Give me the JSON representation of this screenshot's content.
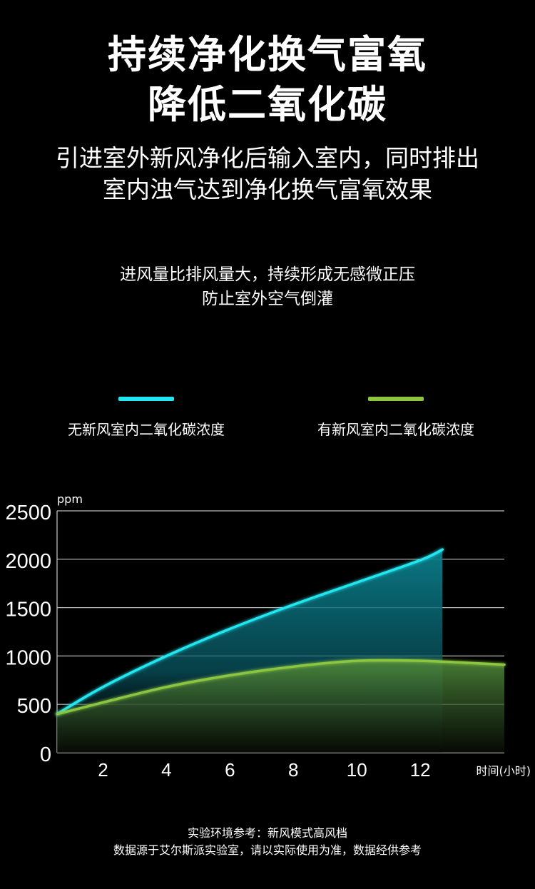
{
  "header": {
    "title_lines": [
      "持续净化换气富氧",
      "降低二氧化碳"
    ],
    "subtitle_lines": [
      "引进室外新风净化后输入室内，同时排出",
      "室内浊气达到净化换气富氧效果"
    ],
    "note_lines": [
      "进风量比排风量大，持续形成无感微正压",
      "防止室外空气倒灌"
    ]
  },
  "legend": [
    {
      "label": "无新风室内二氧化碳浓度",
      "color": "#22e6f0"
    },
    {
      "label": "有新风室内二氧化碳浓度",
      "color": "#8cc63f"
    }
  ],
  "chart_data": {
    "type": "area",
    "ylabel": "ppm",
    "xlabel": "时间(小时)",
    "ylim": [
      0,
      2500
    ],
    "xlim": [
      0.55,
      14.65
    ],
    "yticks": [
      "0",
      "500",
      "1000",
      "1500",
      "2000",
      "2500"
    ],
    "xticks": [
      "2",
      "4",
      "6",
      "8",
      "10",
      "12"
    ],
    "grid": true,
    "legend_position": "top",
    "series": [
      {
        "name": "无新风室内二氧化碳浓度",
        "color": "#22e6f0",
        "x": [
          0.55,
          2,
          4,
          6,
          8,
          10,
          12,
          12.7
        ],
        "y": [
          400,
          680,
          1000,
          1280,
          1530,
          1760,
          1990,
          2100
        ]
      },
      {
        "name": "有新风室内二氧化碳浓度",
        "color": "#8cc63f",
        "x": [
          0.55,
          2,
          4,
          6,
          8,
          10,
          12,
          14.65
        ],
        "y": [
          400,
          520,
          680,
          800,
          890,
          950,
          950,
          910
        ]
      }
    ]
  },
  "footer": {
    "lines": [
      "实验环境参考：新风模式高风档",
      "数据源于艾尔斯派实验室，请以实际使用为准，数据经供参考"
    ]
  }
}
